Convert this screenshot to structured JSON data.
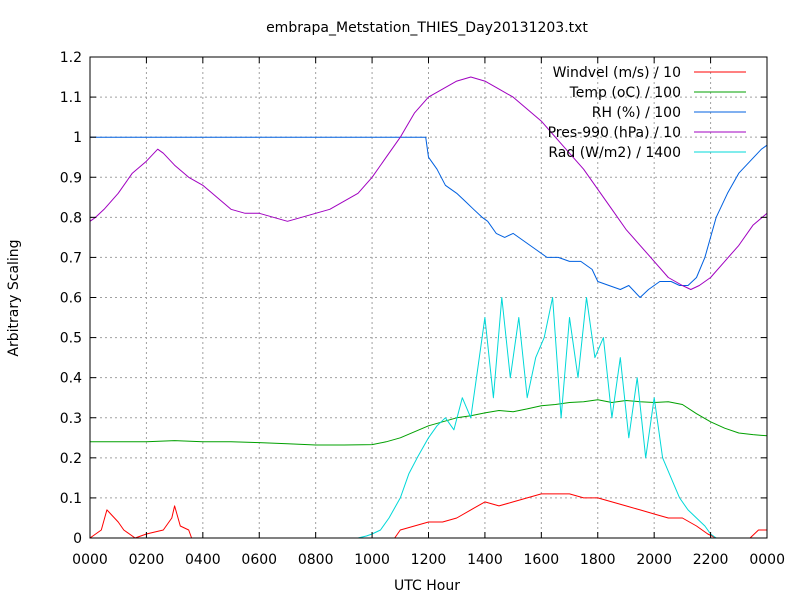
{
  "chart_data": {
    "type": "line",
    "title": "embrapa_Metstation_THIES_Day20131203.txt",
    "xlabel": "UTC Hour",
    "ylabel": "Arbitrary Scaling",
    "xlim": [
      0,
      24
    ],
    "ylim": [
      0,
      1.2
    ],
    "x_ticks": [
      "0000",
      "0200",
      "0400",
      "0600",
      "0800",
      "1000",
      "1200",
      "1400",
      "1600",
      "1800",
      "2000",
      "2200",
      "0000"
    ],
    "y_ticks": [
      "0",
      "0.1",
      "0.2",
      "0.3",
      "0.4",
      "0.5",
      "0.6",
      "0.7",
      "0.8",
      "0.9",
      "1",
      "1.1",
      "1.2"
    ],
    "grid": true,
    "legend_position": "top-right",
    "series": [
      {
        "name": "Windvel (m/s) / 10",
        "color": "#ff0000",
        "x": [
          0,
          0.4,
          0.6,
          1.0,
          1.2,
          1.6,
          2.0,
          2.6,
          2.9,
          3.0,
          3.2,
          3.5,
          3.6,
          5.0,
          8.0,
          10.8,
          11.0,
          11.5,
          12.0,
          12.5,
          13.0,
          13.5,
          14.0,
          14.5,
          15.0,
          15.5,
          16.0,
          16.5,
          17.0,
          17.5,
          18.0,
          18.5,
          19.0,
          19.5,
          20.0,
          20.5,
          21.0,
          21.5,
          21.9,
          22.2,
          23.4,
          23.7,
          24.0
        ],
        "values": [
          0,
          0.02,
          0.07,
          0.04,
          0.02,
          0,
          0.01,
          0.02,
          0.05,
          0.08,
          0.03,
          0.02,
          0,
          0,
          0,
          0,
          0.02,
          0.03,
          0.04,
          0.04,
          0.05,
          0.07,
          0.09,
          0.08,
          0.09,
          0.1,
          0.11,
          0.11,
          0.11,
          0.1,
          0.1,
          0.09,
          0.08,
          0.07,
          0.06,
          0.05,
          0.05,
          0.03,
          0.01,
          0,
          0,
          0.02,
          0.02
        ]
      },
      {
        "name": "Temp (oC) / 100",
        "color": "#00a000",
        "x": [
          0,
          1,
          2,
          3,
          4,
          5,
          6,
          7,
          8,
          9,
          10,
          10.5,
          11,
          11.5,
          12,
          12.5,
          13,
          13.5,
          14,
          14.5,
          15,
          15.5,
          16,
          16.5,
          17,
          17.5,
          18,
          18.5,
          19,
          19.5,
          20,
          20.5,
          21,
          21.5,
          22,
          22.5,
          23,
          23.5,
          24
        ],
        "values": [
          0.24,
          0.24,
          0.24,
          0.243,
          0.24,
          0.24,
          0.238,
          0.235,
          0.232,
          0.232,
          0.233,
          0.24,
          0.25,
          0.265,
          0.28,
          0.29,
          0.3,
          0.305,
          0.312,
          0.318,
          0.315,
          0.322,
          0.33,
          0.333,
          0.338,
          0.34,
          0.345,
          0.338,
          0.343,
          0.34,
          0.338,
          0.34,
          0.333,
          0.31,
          0.29,
          0.274,
          0.262,
          0.258,
          0.255
        ]
      },
      {
        "name": "RH (%) / 100",
        "color": "#0060e0",
        "x": [
          0,
          1,
          2,
          4,
          6,
          8,
          10,
          11,
          11.9,
          12.0,
          12.3,
          12.6,
          13.0,
          13.3,
          13.6,
          13.9,
          14.1,
          14.4,
          14.7,
          15.0,
          15.4,
          15.8,
          16.2,
          16.6,
          17.0,
          17.4,
          17.8,
          18.0,
          18.4,
          18.8,
          19.1,
          19.5,
          19.8,
          20.2,
          20.6,
          20.9,
          21.2,
          21.5,
          21.8,
          22.2,
          22.6,
          23.0,
          23.4,
          23.8,
          24.0
        ],
        "values": [
          1.0,
          1.0,
          1.0,
          1.0,
          1.0,
          1.0,
          1.0,
          1.0,
          1.0,
          0.95,
          0.92,
          0.88,
          0.86,
          0.84,
          0.82,
          0.8,
          0.79,
          0.76,
          0.75,
          0.76,
          0.74,
          0.72,
          0.7,
          0.7,
          0.69,
          0.69,
          0.67,
          0.64,
          0.63,
          0.62,
          0.63,
          0.6,
          0.62,
          0.64,
          0.64,
          0.63,
          0.63,
          0.65,
          0.7,
          0.8,
          0.86,
          0.91,
          0.94,
          0.97,
          0.98
        ]
      },
      {
        "name": "Pres-990 (hPa) / 10",
        "color": "#a000c0",
        "x": [
          0,
          0.2,
          0.5,
          1.0,
          1.5,
          2.0,
          2.4,
          2.6,
          3.0,
          3.5,
          4.0,
          4.5,
          5.0,
          5.5,
          6.0,
          6.5,
          7.0,
          7.5,
          8.0,
          8.5,
          9.0,
          9.5,
          10.0,
          10.5,
          11.0,
          11.5,
          12.0,
          12.5,
          13.0,
          13.5,
          14.0,
          14.5,
          15.0,
          15.5,
          16.0,
          16.5,
          17.0,
          17.5,
          18.0,
          18.5,
          19.0,
          19.5,
          20.0,
          20.5,
          21.0,
          21.3,
          21.6,
          22.0,
          22.5,
          23.0,
          23.5,
          24.0
        ],
        "values": [
          0.79,
          0.8,
          0.82,
          0.86,
          0.91,
          0.94,
          0.97,
          0.96,
          0.93,
          0.9,
          0.88,
          0.85,
          0.82,
          0.81,
          0.81,
          0.8,
          0.79,
          0.8,
          0.81,
          0.82,
          0.84,
          0.86,
          0.9,
          0.95,
          1.0,
          1.06,
          1.1,
          1.12,
          1.14,
          1.15,
          1.14,
          1.12,
          1.1,
          1.07,
          1.04,
          1.0,
          0.96,
          0.92,
          0.87,
          0.82,
          0.77,
          0.73,
          0.69,
          0.65,
          0.63,
          0.62,
          0.63,
          0.65,
          0.69,
          0.73,
          0.78,
          0.81
        ]
      },
      {
        "name": "Rad (W/m2) / 1400",
        "color": "#00d8d8",
        "x": [
          0,
          9.5,
          9.8,
          10.0,
          10.3,
          10.6,
          11.0,
          11.3,
          11.6,
          12.0,
          12.3,
          12.6,
          12.9,
          13.2,
          13.5,
          13.8,
          14.0,
          14.3,
          14.6,
          14.9,
          15.2,
          15.5,
          15.8,
          16.1,
          16.4,
          16.7,
          17.0,
          17.3,
          17.6,
          17.9,
          18.2,
          18.5,
          18.8,
          19.1,
          19.4,
          19.7,
          20.0,
          20.3,
          20.6,
          20.9,
          21.2,
          21.5,
          21.8,
          22.0,
          22.2,
          24.0
        ],
        "values": [
          0,
          0,
          0.005,
          0.01,
          0.02,
          0.05,
          0.1,
          0.16,
          0.2,
          0.25,
          0.28,
          0.3,
          0.27,
          0.35,
          0.3,
          0.45,
          0.55,
          0.35,
          0.6,
          0.4,
          0.55,
          0.35,
          0.45,
          0.5,
          0.6,
          0.3,
          0.55,
          0.4,
          0.6,
          0.45,
          0.5,
          0.3,
          0.45,
          0.25,
          0.4,
          0.2,
          0.35,
          0.2,
          0.15,
          0.1,
          0.07,
          0.05,
          0.03,
          0.01,
          0,
          0
        ]
      }
    ]
  }
}
